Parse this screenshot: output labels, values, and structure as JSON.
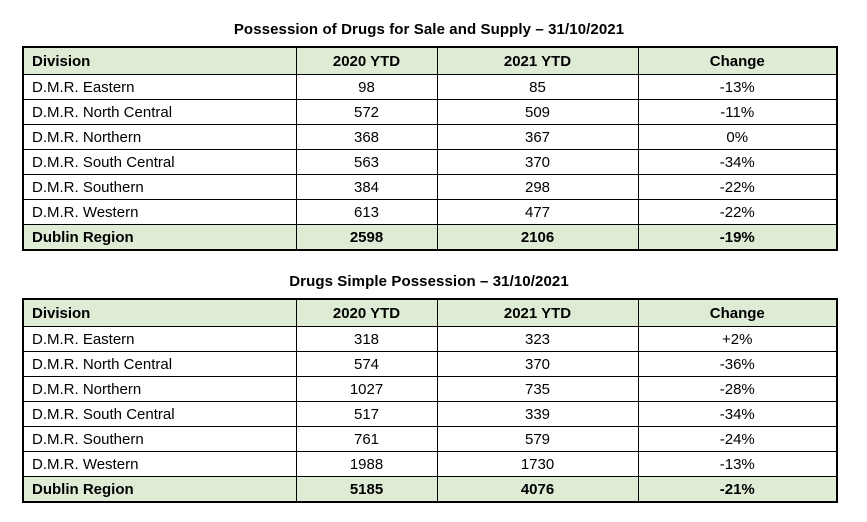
{
  "document": {
    "tables": [
      {
        "title": "Possession of Drugs for Sale and Supply – 31/10/2021",
        "columns": [
          "Division",
          "2020 YTD",
          "2021 YTD",
          "Change"
        ],
        "rows": [
          [
            "D.M.R. Eastern",
            "98",
            "85",
            "-13%"
          ],
          [
            "D.M.R. North Central",
            "572",
            "509",
            "-11%"
          ],
          [
            "D.M.R. Northern",
            "368",
            "367",
            "0%"
          ],
          [
            "D.M.R. South Central",
            "563",
            "370",
            "-34%"
          ],
          [
            "D.M.R. Southern",
            "384",
            "298",
            "-22%"
          ],
          [
            "D.M.R. Western",
            "613",
            "477",
            "-22%"
          ]
        ],
        "total_row": [
          "Dublin Region",
          "2598",
          "2106",
          "-19%"
        ]
      },
      {
        "title": "Drugs Simple Possession – 31/10/2021",
        "columns": [
          "Division",
          "2020 YTD",
          "2021 YTD",
          "Change"
        ],
        "rows": [
          [
            "D.M.R. Eastern",
            "318",
            "323",
            "+2%"
          ],
          [
            "D.M.R. North Central",
            "574",
            "370",
            "-36%"
          ],
          [
            "D.M.R. Northern",
            "1027",
            "735",
            "-28%"
          ],
          [
            "D.M.R. South Central",
            "517",
            "339",
            "-34%"
          ],
          [
            "D.M.R. Southern",
            "761",
            "579",
            "-24%"
          ],
          [
            "D.M.R. Western",
            "1988",
            "1730",
            "-13%"
          ]
        ],
        "total_row": [
          "Dublin Region",
          "5185",
          "4076",
          "-21%"
        ]
      }
    ],
    "colors": {
      "header_row_bg": "#dfecd5",
      "total_row_bg": "#dfecd5",
      "table_border": "#000000",
      "text": "#000000",
      "page_bg": "#ffffff"
    }
  }
}
